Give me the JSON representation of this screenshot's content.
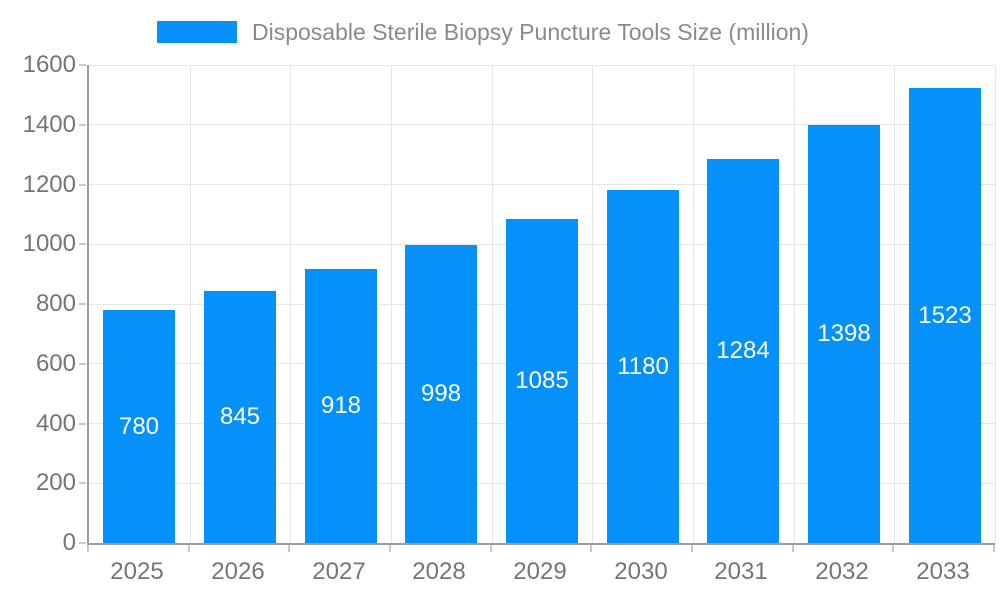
{
  "chart_data": {
    "type": "bar",
    "title": "Disposable Sterile Biopsy Puncture Tools Size (million)",
    "series_name": "Disposable Sterile Biopsy Puncture Tools Size (million)",
    "categories": [
      "2025",
      "2026",
      "2027",
      "2028",
      "2029",
      "2030",
      "2031",
      "2032",
      "2033"
    ],
    "values": [
      780,
      845,
      918,
      998,
      1085,
      1180,
      1284,
      1398,
      1523
    ],
    "xlabel": "",
    "ylabel": "",
    "ylim": [
      0,
      1600
    ],
    "yticks": [
      0,
      200,
      400,
      600,
      800,
      1000,
      1200,
      1400,
      1600
    ],
    "grid": true,
    "legend_position": "top-center",
    "bar_color": "#0590fa",
    "bar_label_color": "#ffffff",
    "axis_label_color": "#757575",
    "title_color": "#8a8a8a",
    "grid_color": "#e6e6e6",
    "axis_line_color": "#9c9c9c"
  }
}
